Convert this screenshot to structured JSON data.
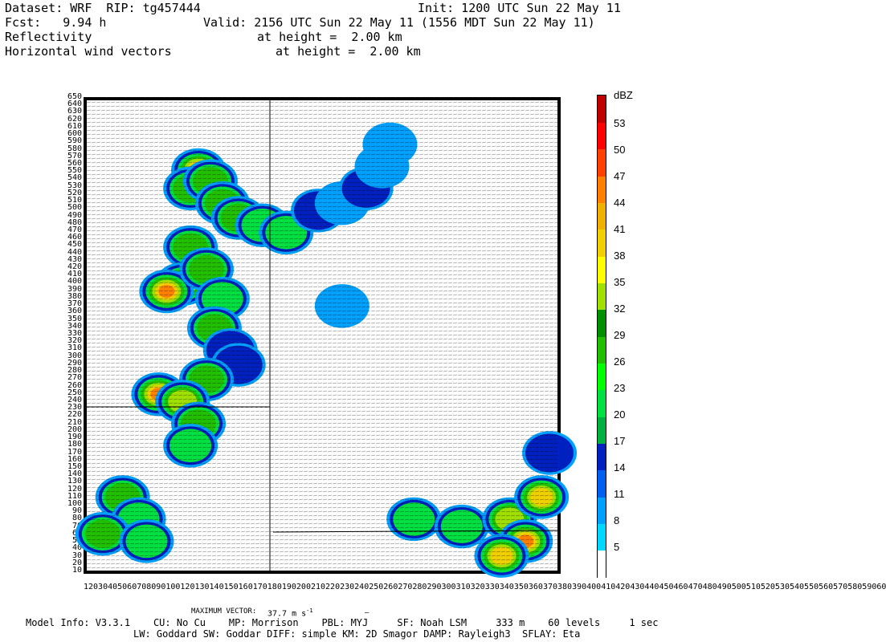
{
  "header": {
    "dataset": "Dataset: WRF  RIP: tg457444",
    "init": "Init: 1200 UTC Sun 22 May 11",
    "fcst": "Fcst:   9.94 h",
    "valid": "Valid: 2156 UTC Sun 22 May 11 (1556 MDT Sun 22 May 11)",
    "field1": "Reflectivity",
    "field1_height": "at height =  2.00 km",
    "field2": "Horizontal wind vectors",
    "field2_height": "at height =  2.00 km"
  },
  "chart_data": {
    "type": "heatmap",
    "title": "Reflectivity",
    "colorbar_unit": "dBZ",
    "colorbar_levels": [
      5,
      8,
      11,
      14,
      17,
      20,
      23,
      26,
      29,
      32,
      35,
      38,
      41,
      44,
      47,
      50,
      53
    ],
    "colorbar_colors": [
      "#ffffff",
      "#00d8ff",
      "#00a0ff",
      "#0060f0",
      "#0020c0",
      "#00b040",
      "#00e040",
      "#00ff00",
      "#20c000",
      "#009000",
      "#a0e000",
      "#ffff00",
      "#f0d000",
      "#f0b000",
      "#ff8000",
      "#ff4000",
      "#ff0000",
      "#c00000"
    ],
    "y_ticks": [
      10,
      20,
      30,
      40,
      50,
      60,
      70,
      80,
      90,
      100,
      110,
      120,
      130,
      140,
      150,
      160,
      170,
      180,
      190,
      200,
      210,
      220,
      230,
      240,
      250,
      260,
      270,
      280,
      290,
      300,
      310,
      320,
      330,
      340,
      350,
      360,
      370,
      380,
      390,
      400,
      410,
      420,
      430,
      440,
      450,
      460,
      470,
      480,
      490,
      500,
      510,
      520,
      530,
      540,
      550,
      560,
      570,
      580,
      590,
      600,
      610,
      620,
      630,
      640,
      650
    ],
    "x_tick_text": "1203040506070809010012013014015016017018019020021022023024025026027028029030031032033034035036037038039040041042043044045046047048049050051052053054055056057058059060",
    "ylim": [
      10,
      650
    ],
    "xlim": [
      10,
      600
    ],
    "cells": [
      {
        "x": 150,
        "y": 555,
        "dbz": 41
      },
      {
        "x": 140,
        "y": 530,
        "dbz": 29
      },
      {
        "x": 165,
        "y": 540,
        "dbz": 26
      },
      {
        "x": 180,
        "y": 510,
        "dbz": 29
      },
      {
        "x": 200,
        "y": 490,
        "dbz": 26
      },
      {
        "x": 230,
        "y": 480,
        "dbz": 23
      },
      {
        "x": 260,
        "y": 470,
        "dbz": 20
      },
      {
        "x": 300,
        "y": 500,
        "dbz": 14
      },
      {
        "x": 330,
        "y": 510,
        "dbz": 11
      },
      {
        "x": 360,
        "y": 530,
        "dbz": 14
      },
      {
        "x": 380,
        "y": 560,
        "dbz": 11
      },
      {
        "x": 390,
        "y": 590,
        "dbz": 8
      },
      {
        "x": 140,
        "y": 450,
        "dbz": 29
      },
      {
        "x": 130,
        "y": 400,
        "dbz": 41
      },
      {
        "x": 110,
        "y": 390,
        "dbz": 44
      },
      {
        "x": 160,
        "y": 420,
        "dbz": 29
      },
      {
        "x": 180,
        "y": 380,
        "dbz": 23
      },
      {
        "x": 170,
        "y": 340,
        "dbz": 26
      },
      {
        "x": 190,
        "y": 310,
        "dbz": 17
      },
      {
        "x": 200,
        "y": 290,
        "dbz": 14
      },
      {
        "x": 160,
        "y": 270,
        "dbz": 29
      },
      {
        "x": 100,
        "y": 250,
        "dbz": 47
      },
      {
        "x": 130,
        "y": 240,
        "dbz": 32
      },
      {
        "x": 150,
        "y": 210,
        "dbz": 26
      },
      {
        "x": 140,
        "y": 180,
        "dbz": 20
      },
      {
        "x": 55,
        "y": 110,
        "dbz": 26
      },
      {
        "x": 75,
        "y": 80,
        "dbz": 23
      },
      {
        "x": 30,
        "y": 60,
        "dbz": 29
      },
      {
        "x": 85,
        "y": 50,
        "dbz": 20
      },
      {
        "x": 420,
        "y": 80,
        "dbz": 23
      },
      {
        "x": 480,
        "y": 70,
        "dbz": 20
      },
      {
        "x": 540,
        "y": 80,
        "dbz": 32
      },
      {
        "x": 560,
        "y": 50,
        "dbz": 47
      },
      {
        "x": 580,
        "y": 110,
        "dbz": 41
      },
      {
        "x": 590,
        "y": 170,
        "dbz": 17
      },
      {
        "x": 530,
        "y": 30,
        "dbz": 38
      },
      {
        "x": 330,
        "y": 370,
        "dbz": 11
      }
    ]
  },
  "colorbar": {
    "unit": "dBZ",
    "labels": [
      "53",
      "50",
      "47",
      "44",
      "41",
      "38",
      "35",
      "32",
      "29",
      "26",
      "23",
      "20",
      "17",
      "14",
      "11",
      "8",
      "5"
    ]
  },
  "footer": {
    "max_vector_label": "MAXIMUM VECTOR:",
    "max_vector_value": "37.7 m s",
    "max_vector_unit_exp": "-1",
    "model_info": "Model Info: V3.3.1    CU: No Cu    MP: Morrison    PBL: MYJ     SF: Noah LSM     333 m    60 levels     1 sec",
    "model_info2": "LW: Goddard SW: Goddar DIFF: simple KM: 2D Smagor DAMP: Rayleigh3  SFLAY: Eta"
  }
}
